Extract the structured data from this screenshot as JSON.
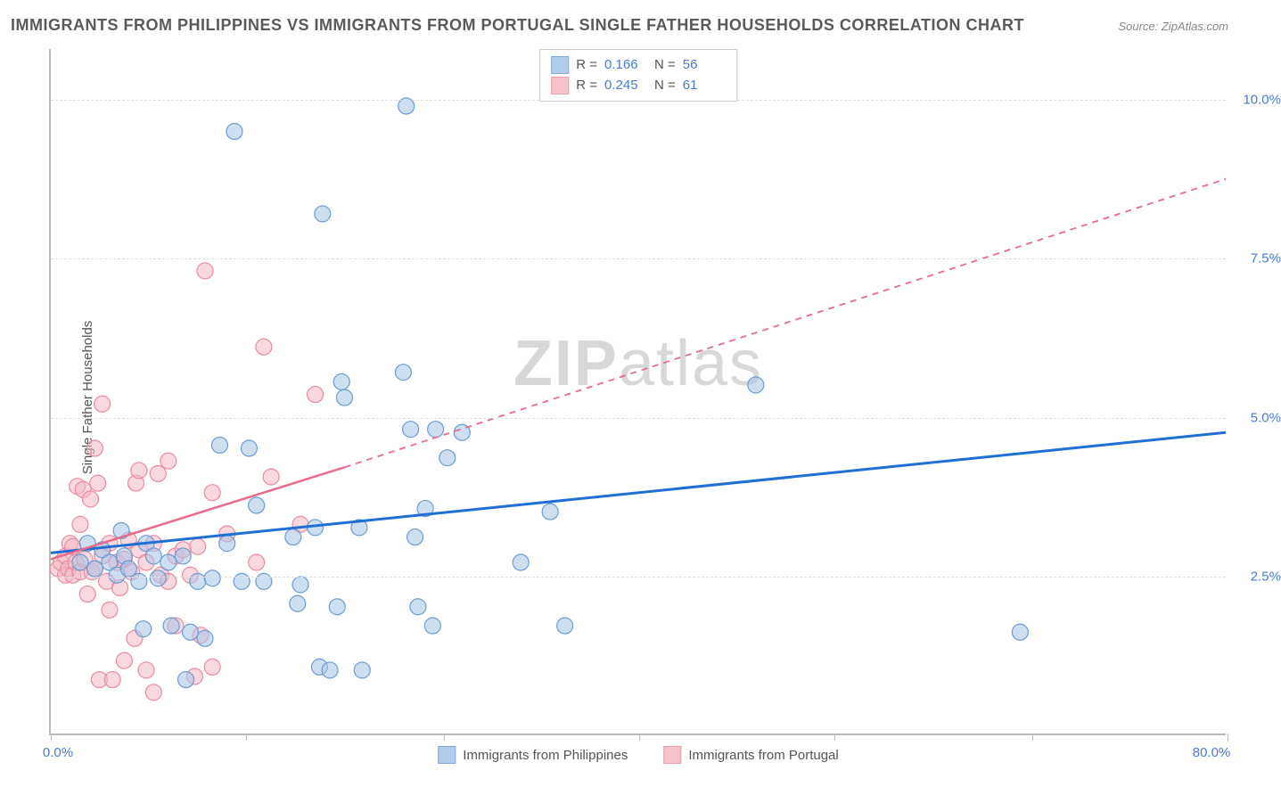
{
  "title": "IMMIGRANTS FROM PHILIPPINES VS IMMIGRANTS FROM PORTUGAL SINGLE FATHER HOUSEHOLDS CORRELATION CHART",
  "source": "Source: ZipAtlas.com",
  "watermark_main": "ZIP",
  "watermark_sub": "atlas",
  "y_axis": {
    "label": "Single Father Households",
    "min": 0.0,
    "max": 10.8,
    "ticks": [
      2.5,
      5.0,
      7.5,
      10.0
    ],
    "tick_labels": [
      "2.5%",
      "5.0%",
      "7.5%",
      "10.0%"
    ],
    "label_color": "#4a7bd0"
  },
  "x_axis": {
    "min": 0.0,
    "max": 80.0,
    "ticks": [
      0,
      13.3,
      26.7,
      40,
      53.3,
      66.7,
      80
    ],
    "tick_labels_shown": {
      "0": "0.0%",
      "80": "80.0%"
    },
    "label_color": "#4a7bd0"
  },
  "series": [
    {
      "name": "Immigrants from Philippines",
      "color_fill": "#a8c4e8",
      "color_stroke": "#6b9bd1",
      "fill_opacity": 0.55,
      "marker_radius": 9,
      "R": "0.166",
      "N": "56",
      "trend": {
        "type": "solid",
        "color": "#1f6fd4",
        "width": 3,
        "x1": 0,
        "y1": 2.85,
        "x2": 80,
        "y2": 4.75
      },
      "points": [
        [
          2,
          2.7
        ],
        [
          2.5,
          3.0
        ],
        [
          3,
          2.6
        ],
        [
          3.5,
          2.9
        ],
        [
          4,
          2.7
        ],
        [
          4.5,
          2.5
        ],
        [
          4.8,
          3.2
        ],
        [
          5,
          2.8
        ],
        [
          5.3,
          2.6
        ],
        [
          6,
          2.4
        ],
        [
          6.3,
          1.65
        ],
        [
          6.5,
          3.0
        ],
        [
          7,
          2.8
        ],
        [
          7.3,
          2.45
        ],
        [
          8,
          2.7
        ],
        [
          8.2,
          1.7
        ],
        [
          9,
          2.8
        ],
        [
          9.2,
          0.85
        ],
        [
          9.5,
          1.6
        ],
        [
          10,
          2.4
        ],
        [
          10.5,
          1.5
        ],
        [
          11,
          2.45
        ],
        [
          11.5,
          4.55
        ],
        [
          12,
          3.0
        ],
        [
          12.5,
          9.5
        ],
        [
          13,
          2.4
        ],
        [
          13.5,
          4.5
        ],
        [
          14,
          3.6
        ],
        [
          14.5,
          2.4
        ],
        [
          16.5,
          3.1
        ],
        [
          16.8,
          2.05
        ],
        [
          17,
          2.35
        ],
        [
          18,
          3.25
        ],
        [
          18.3,
          1.05
        ],
        [
          18.5,
          8.2
        ],
        [
          19,
          1.0
        ],
        [
          19.5,
          2.0
        ],
        [
          19.8,
          5.55
        ],
        [
          20,
          5.3
        ],
        [
          21,
          3.25
        ],
        [
          21.2,
          1.0
        ],
        [
          24,
          5.7
        ],
        [
          24.2,
          9.9
        ],
        [
          24.5,
          4.8
        ],
        [
          24.8,
          3.1
        ],
        [
          25,
          2.0
        ],
        [
          25.5,
          3.55
        ],
        [
          26,
          1.7
        ],
        [
          26.2,
          4.8
        ],
        [
          27,
          4.35
        ],
        [
          28,
          4.75
        ],
        [
          32,
          2.7
        ],
        [
          34,
          3.5
        ],
        [
          35,
          1.7
        ],
        [
          48,
          5.5
        ],
        [
          66,
          1.6
        ]
      ]
    },
    {
      "name": "Immigrants from Portugal",
      "color_fill": "#f4b8c4",
      "color_stroke": "#e88ba0",
      "fill_opacity": 0.55,
      "marker_radius": 9,
      "R": "0.245",
      "N": "61",
      "trend": {
        "type": "solid_then_dashed",
        "color": "#e86b8a",
        "width": 2.5,
        "x1": 0,
        "y1": 2.75,
        "x_split": 20,
        "y_split": 4.2,
        "x2": 80,
        "y2": 8.75
      },
      "points": [
        [
          0.5,
          2.6
        ],
        [
          0.7,
          2.7
        ],
        [
          1,
          2.5
        ],
        [
          1,
          2.8
        ],
        [
          1.2,
          2.6
        ],
        [
          1.3,
          3.0
        ],
        [
          1.5,
          2.5
        ],
        [
          1.5,
          2.95
        ],
        [
          1.7,
          2.7
        ],
        [
          1.8,
          3.9
        ],
        [
          2,
          2.55
        ],
        [
          2,
          3.3
        ],
        [
          2.2,
          3.85
        ],
        [
          2.3,
          2.75
        ],
        [
          2.5,
          2.2
        ],
        [
          2.7,
          3.7
        ],
        [
          2.8,
          2.55
        ],
        [
          3,
          2.6
        ],
        [
          3,
          4.5
        ],
        [
          3.2,
          3.95
        ],
        [
          3.3,
          0.85
        ],
        [
          3.5,
          2.8
        ],
        [
          3.5,
          5.2
        ],
        [
          3.8,
          2.4
        ],
        [
          4,
          1.95
        ],
        [
          4,
          3.0
        ],
        [
          4.2,
          0.85
        ],
        [
          4.5,
          2.7
        ],
        [
          4.7,
          2.3
        ],
        [
          5,
          1.15
        ],
        [
          5,
          2.75
        ],
        [
          5.3,
          3.05
        ],
        [
          5.5,
          2.55
        ],
        [
          5.7,
          1.5
        ],
        [
          5.8,
          3.95
        ],
        [
          6,
          2.9
        ],
        [
          6,
          4.15
        ],
        [
          6.5,
          1.0
        ],
        [
          6.5,
          2.7
        ],
        [
          7,
          0.65
        ],
        [
          7,
          3.0
        ],
        [
          7.3,
          4.1
        ],
        [
          7.5,
          2.5
        ],
        [
          8,
          2.4
        ],
        [
          8,
          4.3
        ],
        [
          8.5,
          1.7
        ],
        [
          8.5,
          2.8
        ],
        [
          9,
          2.9
        ],
        [
          9.5,
          2.5
        ],
        [
          9.8,
          0.9
        ],
        [
          10,
          2.95
        ],
        [
          10.2,
          1.55
        ],
        [
          10.5,
          7.3
        ],
        [
          11,
          3.8
        ],
        [
          11,
          1.05
        ],
        [
          12,
          3.15
        ],
        [
          14,
          2.7
        ],
        [
          14.5,
          6.1
        ],
        [
          15,
          4.05
        ],
        [
          17,
          3.3
        ],
        [
          18,
          5.35
        ]
      ]
    }
  ],
  "stat_legend_labels": {
    "R": "R  =",
    "N": "N  ="
  },
  "colors": {
    "background": "#ffffff",
    "axis": "#bbbbbb",
    "grid": "#e0e0e0",
    "title": "#5a5a5a",
    "watermark": "#d8d8d8"
  },
  "fontsize": {
    "title": 18,
    "axis_label": 15,
    "tick": 15,
    "legend": 15,
    "watermark": 72
  }
}
